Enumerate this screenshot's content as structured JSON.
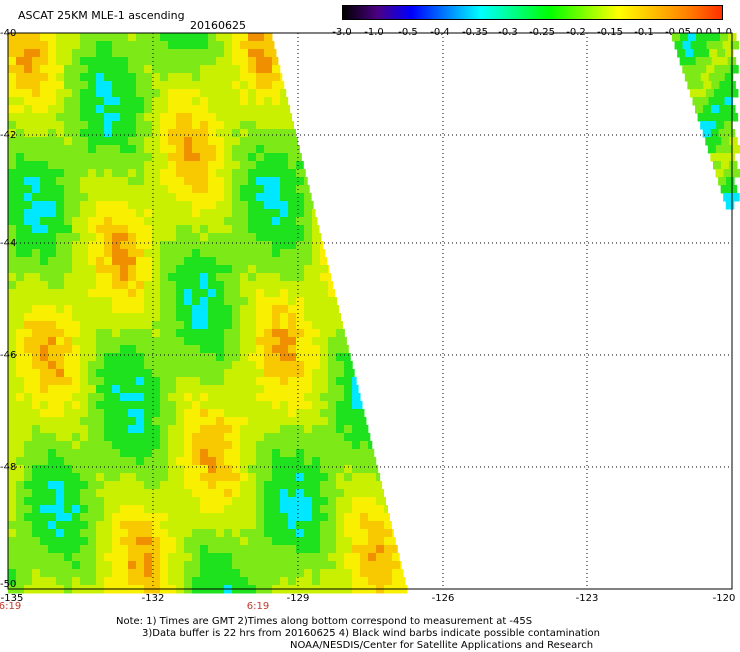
{
  "header": {
    "title": "ASCAT 25KM MLE-1 ascending",
    "date": "20160625"
  },
  "colorbar": {
    "labels": [
      "-3.0",
      "-1.0",
      "-0.5",
      "-0.4",
      "-0.35",
      "-0.3",
      "-0.25",
      "-0.2",
      "-0.15",
      "-0.1",
      "-0.05",
      "0.0",
      "1.0"
    ],
    "colors": [
      "#000000",
      "#4b0082",
      "#0000ff",
      "#0080ff",
      "#00ffff",
      "#00ff80",
      "#00ff00",
      "#80ff00",
      "#ffff00",
      "#ffc000",
      "#ff8000",
      "#ff3000"
    ]
  },
  "map": {
    "lat_labels": [
      "-40",
      "-42",
      "-44",
      "-46",
      "-48",
      "-50"
    ],
    "lon_labels": [
      "-135",
      "-132",
      "-129",
      "-126",
      "-123",
      "-120"
    ],
    "time_labels": [
      "6:19",
      "6:19"
    ],
    "lat_range": [
      -50,
      -40
    ],
    "lon_range": [
      -135,
      -120
    ]
  },
  "notes": {
    "line1": "Note: 1) Times are GMT 2)Times along bottom correspond to measurement at -45S",
    "line2": "3)Data buffer is 22 hrs from 20160625 4) Black wind barbs indicate possible contamination",
    "line3": "NOAA/NESDIS/Center for Satellite Applications and Research"
  }
}
